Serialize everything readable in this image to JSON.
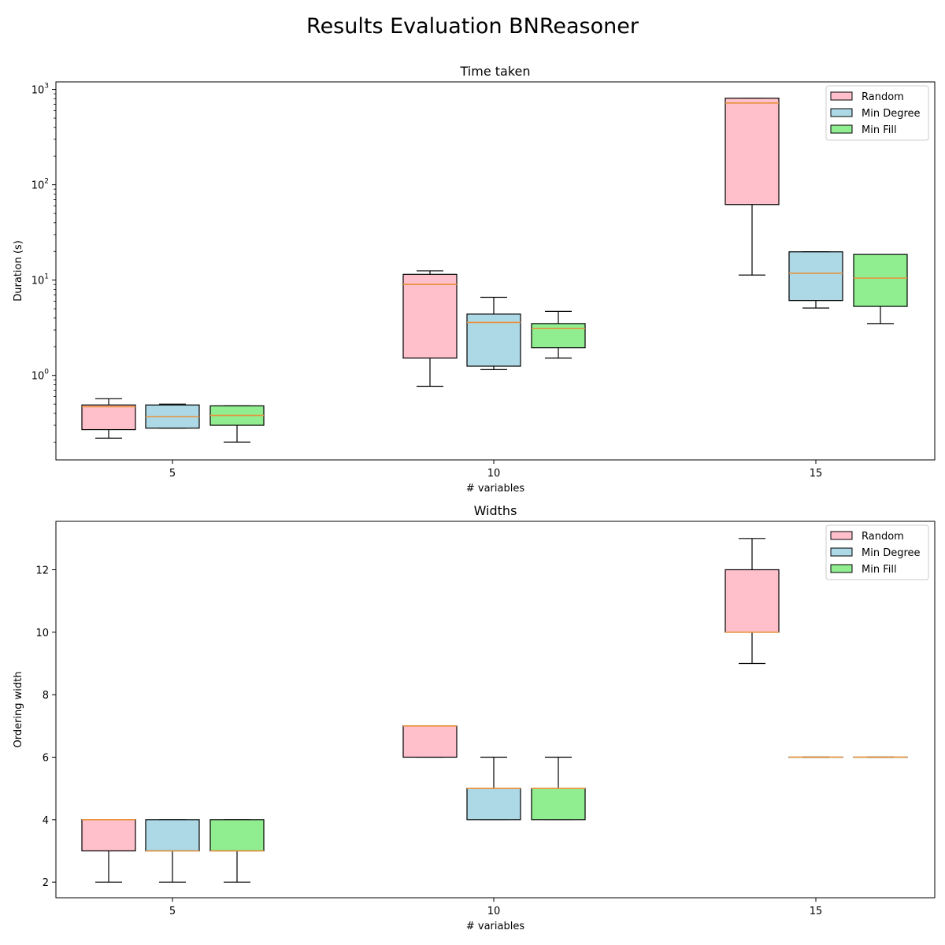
{
  "figure": {
    "suptitle": "Results Evaluation BNReasoner"
  },
  "colors": {
    "Random": "#ffc0cb",
    "Min Degree": "#add8e6",
    "Min Fill": "#90ee90",
    "median": "#e8913a"
  },
  "chart_data": [
    {
      "type": "box",
      "title": "Time taken",
      "xlabel": "# variables",
      "ylabel": "Duration (s)",
      "yscale": "log",
      "ylim": [
        0.13,
        1200
      ],
      "yticks": [
        {
          "value": 1,
          "base": "10",
          "exp": "0"
        },
        {
          "value": 10,
          "base": "10",
          "exp": "1"
        },
        {
          "value": 100,
          "base": "10",
          "exp": "2"
        },
        {
          "value": 1000,
          "base": "10",
          "exp": "3"
        }
      ],
      "categories": [
        "5",
        "10",
        "15"
      ],
      "legend_position": "top-right",
      "grid": false,
      "series": [
        {
          "name": "Random",
          "boxes": [
            {
              "whislo": 0.22,
              "q1": 0.27,
              "med": 0.47,
              "q3": 0.49,
              "whishi": 0.57
            },
            {
              "whislo": 0.77,
              "q1": 1.52,
              "med": 9.0,
              "q3": 11.5,
              "whishi": 12.5
            },
            {
              "whislo": 11.3,
              "q1": 62,
              "med": 720,
              "q3": 810,
              "whishi": 810
            }
          ]
        },
        {
          "name": "Min Degree",
          "boxes": [
            {
              "whislo": 0.28,
              "q1": 0.28,
              "med": 0.37,
              "q3": 0.49,
              "whishi": 0.5
            },
            {
              "whislo": 1.15,
              "q1": 1.25,
              "med": 3.6,
              "q3": 4.4,
              "whishi": 6.6
            },
            {
              "whislo": 5.1,
              "q1": 6.1,
              "med": 11.8,
              "q3": 19.8,
              "whishi": 19.8
            }
          ]
        },
        {
          "name": "Min Fill",
          "boxes": [
            {
              "whislo": 0.2,
              "q1": 0.3,
              "med": 0.38,
              "q3": 0.48,
              "whishi": 0.48
            },
            {
              "whislo": 1.52,
              "q1": 1.95,
              "med": 3.1,
              "q3": 3.5,
              "whishi": 4.7
            },
            {
              "whislo": 3.5,
              "q1": 5.3,
              "med": 10.5,
              "q3": 18.6,
              "whishi": 18.6
            }
          ]
        }
      ]
    },
    {
      "type": "box",
      "title": "Widths",
      "xlabel": "# variables",
      "ylabel": "Ordering width",
      "yscale": "linear",
      "ylim": [
        1.5,
        13.55
      ],
      "yticks": [
        {
          "value": 2,
          "label": "2"
        },
        {
          "value": 4,
          "label": "4"
        },
        {
          "value": 6,
          "label": "6"
        },
        {
          "value": 8,
          "label": "8"
        },
        {
          "value": 10,
          "label": "10"
        },
        {
          "value": 12,
          "label": "12"
        }
      ],
      "categories": [
        "5",
        "10",
        "15"
      ],
      "legend_position": "top-right",
      "grid": false,
      "series": [
        {
          "name": "Random",
          "boxes": [
            {
              "whislo": 2,
              "q1": 3,
              "med": 4,
              "q3": 4,
              "whishi": 4
            },
            {
              "whislo": 6,
              "q1": 6,
              "med": 7,
              "q3": 7,
              "whishi": 7
            },
            {
              "whislo": 9,
              "q1": 10,
              "med": 10,
              "q3": 12,
              "whishi": 13
            }
          ]
        },
        {
          "name": "Min Degree",
          "boxes": [
            {
              "whislo": 2,
              "q1": 3,
              "med": 3,
              "q3": 4,
              "whishi": 4
            },
            {
              "whislo": 4,
              "q1": 4,
              "med": 5,
              "q3": 5,
              "whishi": 6
            },
            {
              "whislo": 6,
              "q1": 6,
              "med": 6,
              "q3": 6,
              "whishi": 6
            }
          ]
        },
        {
          "name": "Min Fill",
          "boxes": [
            {
              "whislo": 2,
              "q1": 3,
              "med": 3,
              "q3": 4,
              "whishi": 4
            },
            {
              "whislo": 4,
              "q1": 4,
              "med": 5,
              "q3": 5,
              "whishi": 6
            },
            {
              "whislo": 6,
              "q1": 6,
              "med": 6,
              "q3": 6,
              "whishi": 6
            }
          ]
        }
      ]
    }
  ]
}
